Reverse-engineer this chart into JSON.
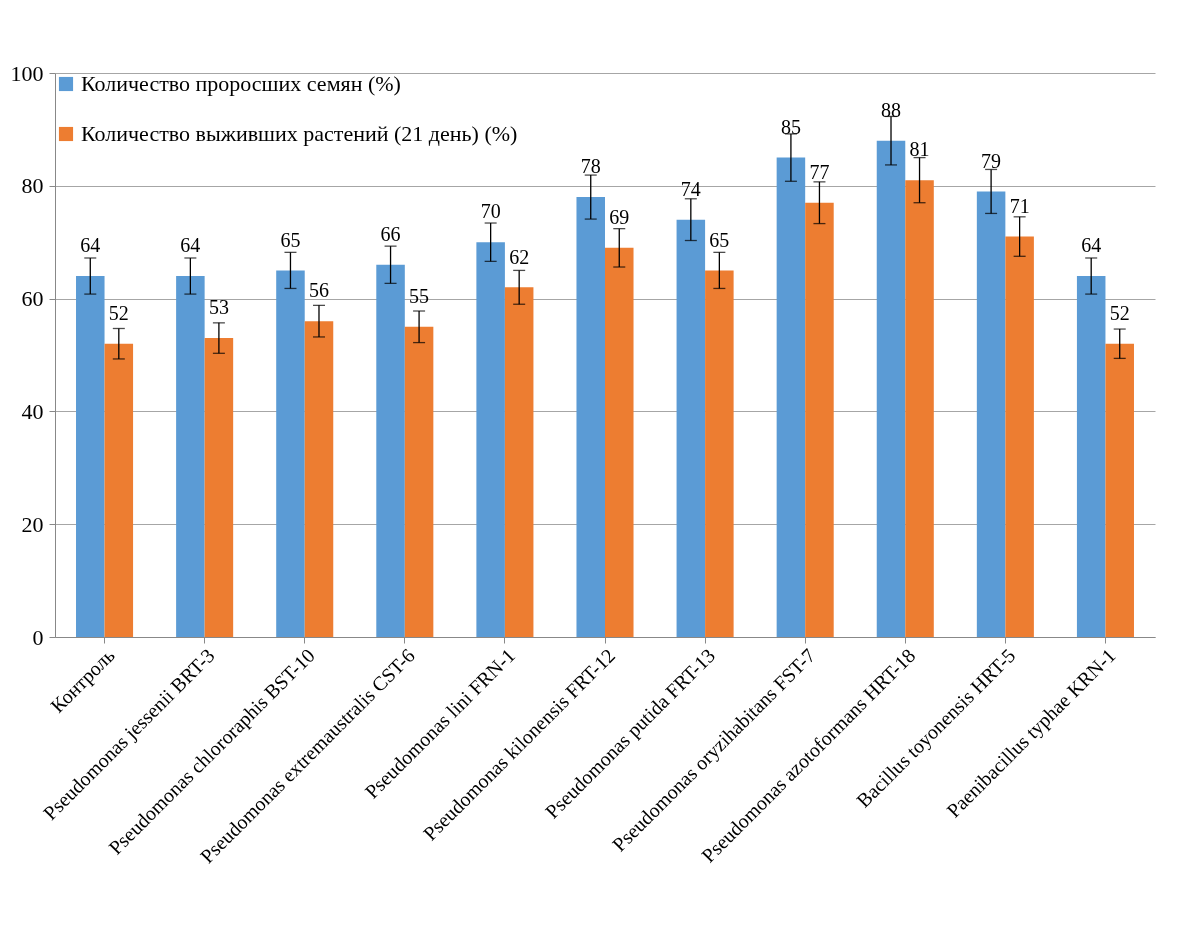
{
  "chart_data": {
    "type": "bar",
    "categories": [
      "Контроль",
      "Pseudomonas jessenii BRT-3",
      "Pseudomonas chlororaphis BST-10",
      "Pseudomonas extremaustralis CST-6",
      "Pseudomonas lini FRN-1",
      "Pseudomonas kilonensis FRT-12",
      "Pseudomonas putida FRT-13",
      "Pseudomonas oryzihabitans FST-7",
      "Pseudomonas azotoformans HRT-18",
      "Bacillus toyonensis HRT-5",
      "Paenibacillus typhae KRN-1"
    ],
    "series": [
      {
        "name": "Количество проросших семян (%)",
        "color": "#5b9bd5",
        "values": [
          64,
          64,
          65,
          66,
          70,
          78,
          74,
          85,
          88,
          79,
          64
        ],
        "errors": [
          3.2,
          3.2,
          3.2,
          3.3,
          3.4,
          3.9,
          3.7,
          4.2,
          4.3,
          3.9,
          3.2
        ]
      },
      {
        "name": "Количество выживших растений (21 день) (%)",
        "color": "#ed7d31",
        "values": [
          52,
          53,
          56,
          55,
          62,
          69,
          65,
          77,
          81,
          71,
          52
        ],
        "errors": [
          2.7,
          2.7,
          2.8,
          2.8,
          3,
          3.4,
          3.2,
          3.7,
          4,
          3.5,
          2.6
        ]
      }
    ],
    "ylim": [
      0,
      100
    ],
    "yticks": [
      0,
      20,
      40,
      60,
      80,
      100
    ],
    "grid": "y",
    "legend": "top left",
    "data_labels": true
  }
}
